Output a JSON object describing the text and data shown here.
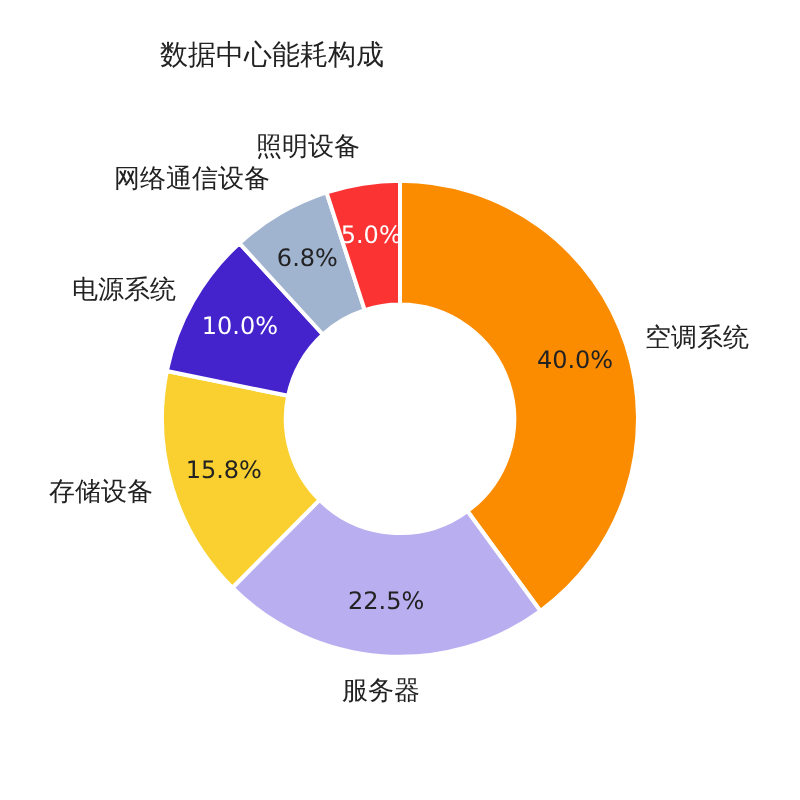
{
  "chart_data": {
    "type": "donut",
    "title": "数据中心能耗构成",
    "categories": [
      "空调系统",
      "服务器",
      "存储设备",
      "电源系统",
      "网络通信设备",
      "照明设备"
    ],
    "values": [
      40.0,
      22.5,
      15.8,
      10.0,
      6.8,
      5.0
    ],
    "colors": [
      "#fb8c00",
      "#b9aef0",
      "#f9d030",
      "#4422cc",
      "#a0b4d0",
      "#fb3333"
    ],
    "value_labels": [
      "40.0%",
      "22.5%",
      "15.8%",
      "10.0%",
      "6.8%",
      "5.0%"
    ],
    "legend": false
  }
}
